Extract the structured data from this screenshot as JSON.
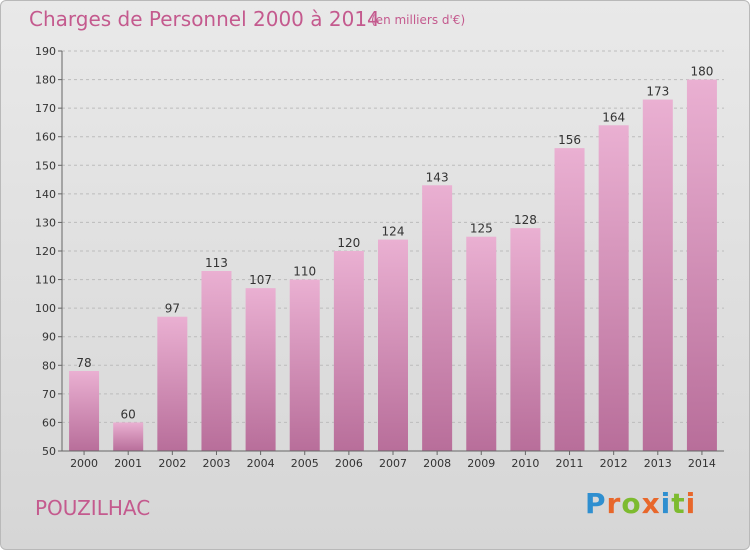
{
  "header": {
    "title": "Charges de Personnel 2000 à 2014",
    "subtitle": "(en milliers d'€)"
  },
  "footer": {
    "commune": "POUZILHAC",
    "brand": "Proxiti"
  },
  "colors": {
    "bar_light": "#eab0d2",
    "bar_dark": "#b86e9a",
    "title": "#c45a8e",
    "grid": "#bcbcbc"
  },
  "chart_data": {
    "type": "bar",
    "categories": [
      "2000",
      "2001",
      "2002",
      "2003",
      "2004",
      "2005",
      "2006",
      "2007",
      "2008",
      "2009",
      "2010",
      "2011",
      "2012",
      "2013",
      "2014"
    ],
    "values": [
      78,
      60,
      97,
      113,
      107,
      110,
      120,
      124,
      143,
      125,
      128,
      156,
      164,
      173,
      180
    ],
    "ylim": [
      50,
      190
    ],
    "yticks": [
      50,
      60,
      70,
      80,
      90,
      100,
      110,
      120,
      130,
      140,
      150,
      160,
      170,
      180,
      190
    ],
    "grid": true,
    "title": "Charges de Personnel 2000 à 2014",
    "xlabel": "",
    "ylabel": ""
  }
}
